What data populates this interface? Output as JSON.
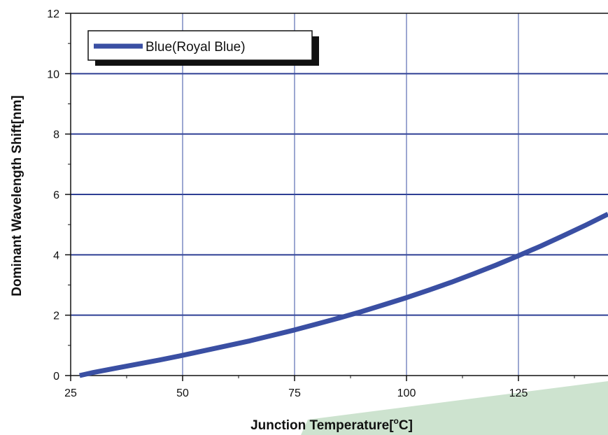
{
  "chart_data": {
    "type": "line",
    "title": "",
    "xlabel": "Junction Temperature[",
    "xlabel_sup": "o",
    "xlabel_tail": "C]",
    "ylabel": "Dominant Wavelength Shift[nm]",
    "xlim": [
      25,
      145
    ],
    "ylim": [
      0,
      12
    ],
    "x_ticks": [
      25,
      50,
      75,
      100,
      125
    ],
    "y_ticks": [
      0,
      2,
      4,
      6,
      8,
      10,
      12
    ],
    "grid": true,
    "legend_position": "top-left",
    "series": [
      {
        "name": "Blue(Royal Blue)",
        "color": "#3a4fa3",
        "x": [
          27,
          30,
          35,
          40,
          45,
          50,
          55,
          60,
          65,
          70,
          75,
          80,
          85,
          90,
          95,
          100,
          105,
          110,
          115,
          120,
          125,
          130,
          135,
          140,
          145
        ],
        "y": [
          0.0,
          0.1,
          0.24,
          0.38,
          0.52,
          0.67,
          0.83,
          0.99,
          1.15,
          1.33,
          1.51,
          1.71,
          1.91,
          2.12,
          2.35,
          2.58,
          2.83,
          3.09,
          3.37,
          3.66,
          3.97,
          4.29,
          4.63,
          4.98,
          5.35
        ]
      }
    ]
  }
}
